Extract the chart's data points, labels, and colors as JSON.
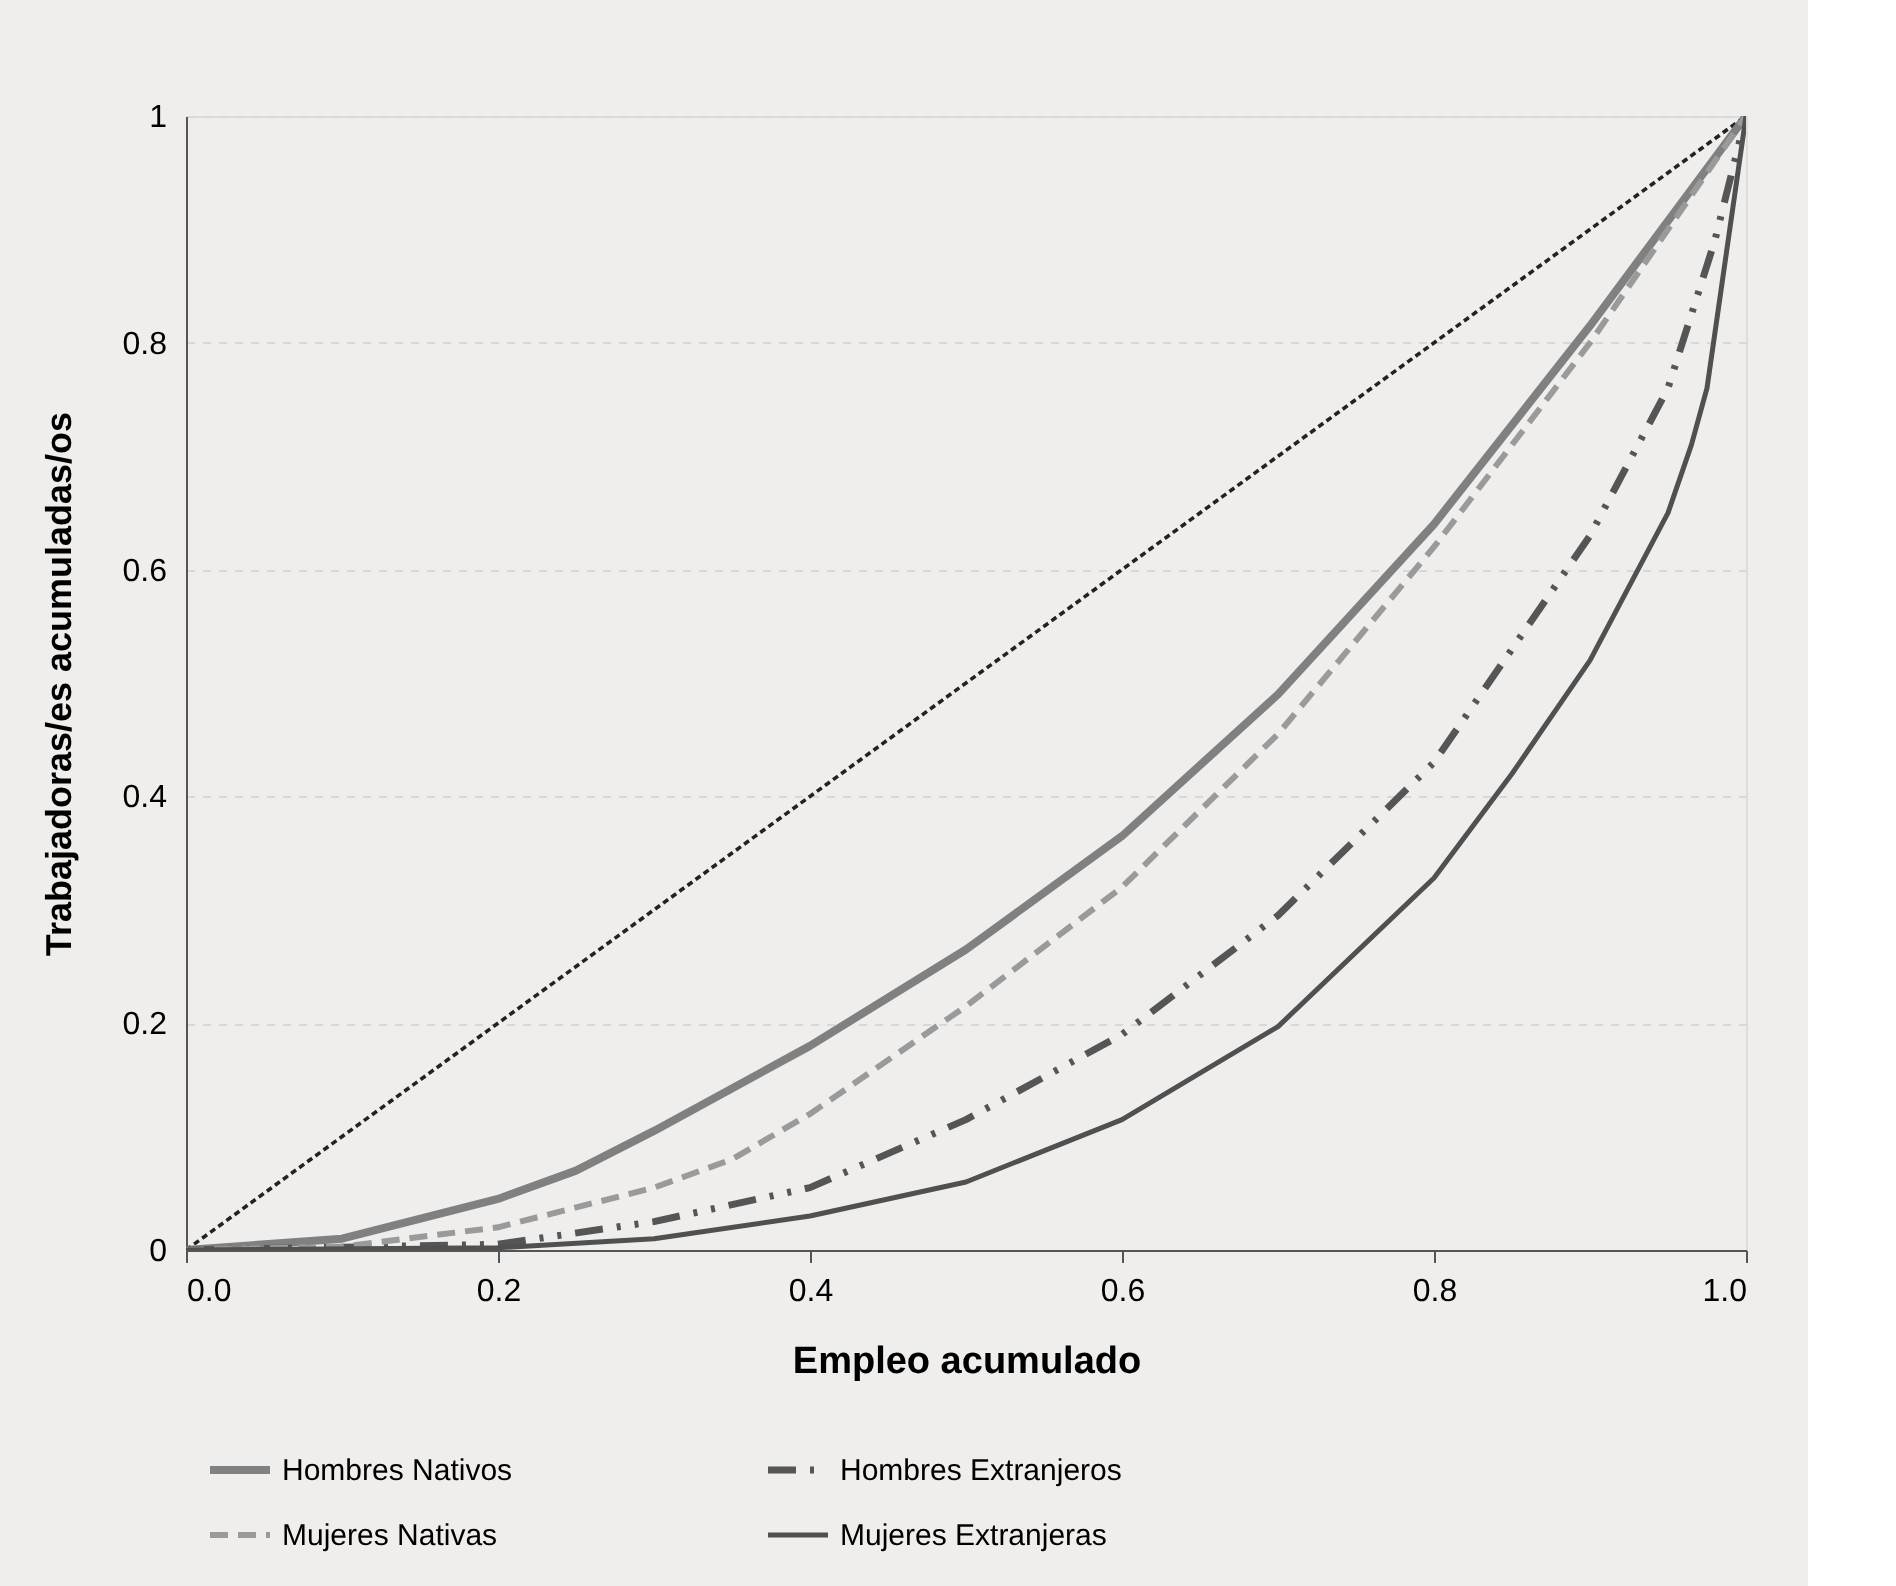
{
  "chart_data": {
    "type": "line",
    "xlabel": "Empleo acumulado",
    "ylabel": "Trabajadoras/es acumuladas/os",
    "xlim": [
      0,
      1
    ],
    "ylim": [
      0,
      1
    ],
    "xticks": [
      {
        "value": 0,
        "label": "0.0"
      },
      {
        "value": 0.2,
        "label": "0.2"
      },
      {
        "value": 0.4,
        "label": "0.4"
      },
      {
        "value": 0.6,
        "label": "0.6"
      },
      {
        "value": 0.8,
        "label": "0.8"
      },
      {
        "value": 1,
        "label": "1.0"
      }
    ],
    "yticks": [
      0,
      0.2,
      0.4,
      0.6,
      0.8,
      1
    ],
    "grid": "y",
    "legend": "bottom",
    "series": [
      {
        "name": "Hombres Nativos",
        "color": "#808080",
        "line_style": "solid",
        "x": [
          0,
          0.1,
          0.2,
          0.25,
          0.3,
          0.4,
          0.5,
          0.6,
          0.7,
          0.8,
          0.9,
          1
        ],
        "values": [
          0,
          0.01,
          0.045,
          0.07,
          0.105,
          0.18,
          0.265,
          0.365,
          0.49,
          0.64,
          0.815,
          1
        ]
      },
      {
        "name": "Hombres Extranjeros",
        "color": "#555555",
        "line_style": "dashdot",
        "x": [
          0,
          0.2,
          0.3,
          0.4,
          0.5,
          0.6,
          0.7,
          0.8,
          0.9,
          0.95,
          0.98,
          1
        ],
        "values": [
          0,
          0.005,
          0.025,
          0.055,
          0.115,
          0.19,
          0.295,
          0.43,
          0.63,
          0.76,
          0.89,
          1
        ]
      },
      {
        "name": "Mujeres Nativas",
        "color": "#9a9a9a",
        "line_style": "dashed",
        "x": [
          0,
          0.1,
          0.2,
          0.3,
          0.35,
          0.4,
          0.5,
          0.6,
          0.7,
          0.8,
          0.9,
          1
        ],
        "values": [
          0,
          0.003,
          0.02,
          0.055,
          0.08,
          0.12,
          0.215,
          0.32,
          0.455,
          0.62,
          0.8,
          1
        ]
      },
      {
        "name": "Mujeres Extranjeras",
        "color": "#505050",
        "line_style": "solid",
        "x": [
          0,
          0.2,
          0.3,
          0.4,
          0.5,
          0.6,
          0.7,
          0.8,
          0.85,
          0.9,
          0.95,
          0.965,
          0.975,
          1
        ],
        "values": [
          0,
          0.002,
          0.01,
          0.03,
          0.06,
          0.115,
          0.197,
          0.328,
          0.42,
          0.52,
          0.65,
          0.71,
          0.76,
          1
        ]
      },
      {
        "color": "#222222",
        "line_style": "dotted",
        "x": [
          0,
          1
        ],
        "values": [
          0,
          1
        ]
      }
    ]
  }
}
